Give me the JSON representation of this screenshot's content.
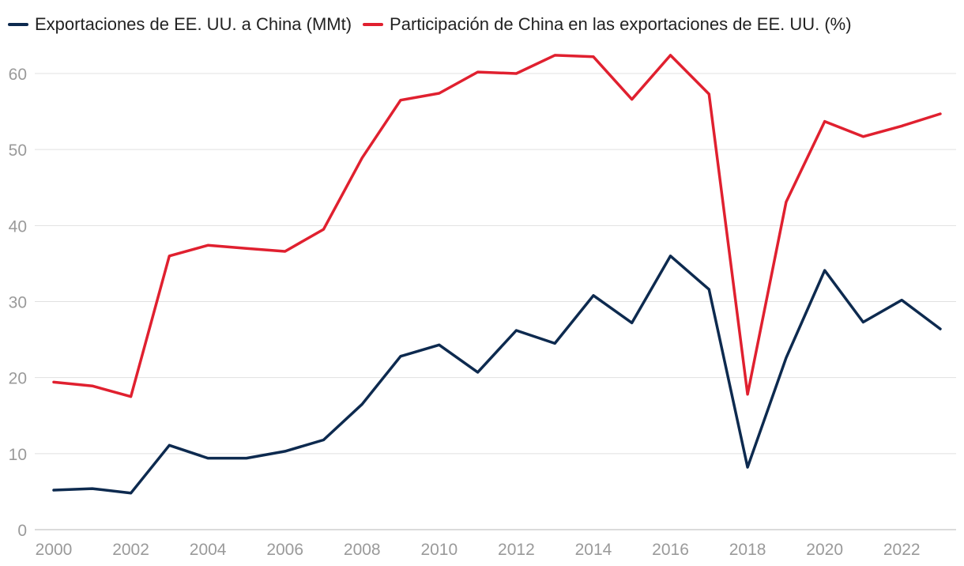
{
  "chart_data": {
    "type": "line",
    "title": "",
    "xlabel": "",
    "ylabel": "",
    "x": [
      2000,
      2001,
      2002,
      2003,
      2004,
      2005,
      2006,
      2007,
      2008,
      2009,
      2010,
      2011,
      2012,
      2013,
      2014,
      2015,
      2016,
      2017,
      2018,
      2019,
      2020,
      2021,
      2022,
      2023
    ],
    "xlim": [
      2000,
      2023
    ],
    "ylim": [
      0,
      65
    ],
    "xticks": [
      "2000",
      "2002",
      "2004",
      "2006",
      "2008",
      "2010",
      "2012",
      "2014",
      "2016",
      "2018",
      "2020",
      "2022"
    ],
    "yticks": [
      "0",
      "10",
      "20",
      "30",
      "40",
      "50",
      "60"
    ],
    "grid": true,
    "legend_position": "top-left",
    "series": [
      {
        "name": "Exportaciones de EE. UU. a China (MMt)",
        "color": "#0d2a4f",
        "values": [
          5.2,
          5.4,
          4.8,
          11.1,
          9.4,
          9.4,
          10.3,
          11.8,
          16.5,
          22.8,
          24.3,
          20.7,
          26.2,
          24.5,
          30.8,
          27.2,
          36.0,
          31.6,
          8.2,
          22.6,
          34.1,
          27.3,
          30.2,
          26.4
        ]
      },
      {
        "name": "Participación de China en las exportaciones de EE. UU. (%)",
        "color": "#e0202f",
        "values": [
          19.4,
          18.9,
          17.5,
          36.0,
          37.4,
          37.0,
          36.6,
          39.5,
          48.9,
          56.5,
          57.4,
          60.2,
          60.0,
          62.4,
          62.2,
          56.6,
          62.4,
          57.3,
          17.8,
          43.1,
          53.7,
          51.7,
          53.1,
          54.7
        ]
      }
    ]
  }
}
